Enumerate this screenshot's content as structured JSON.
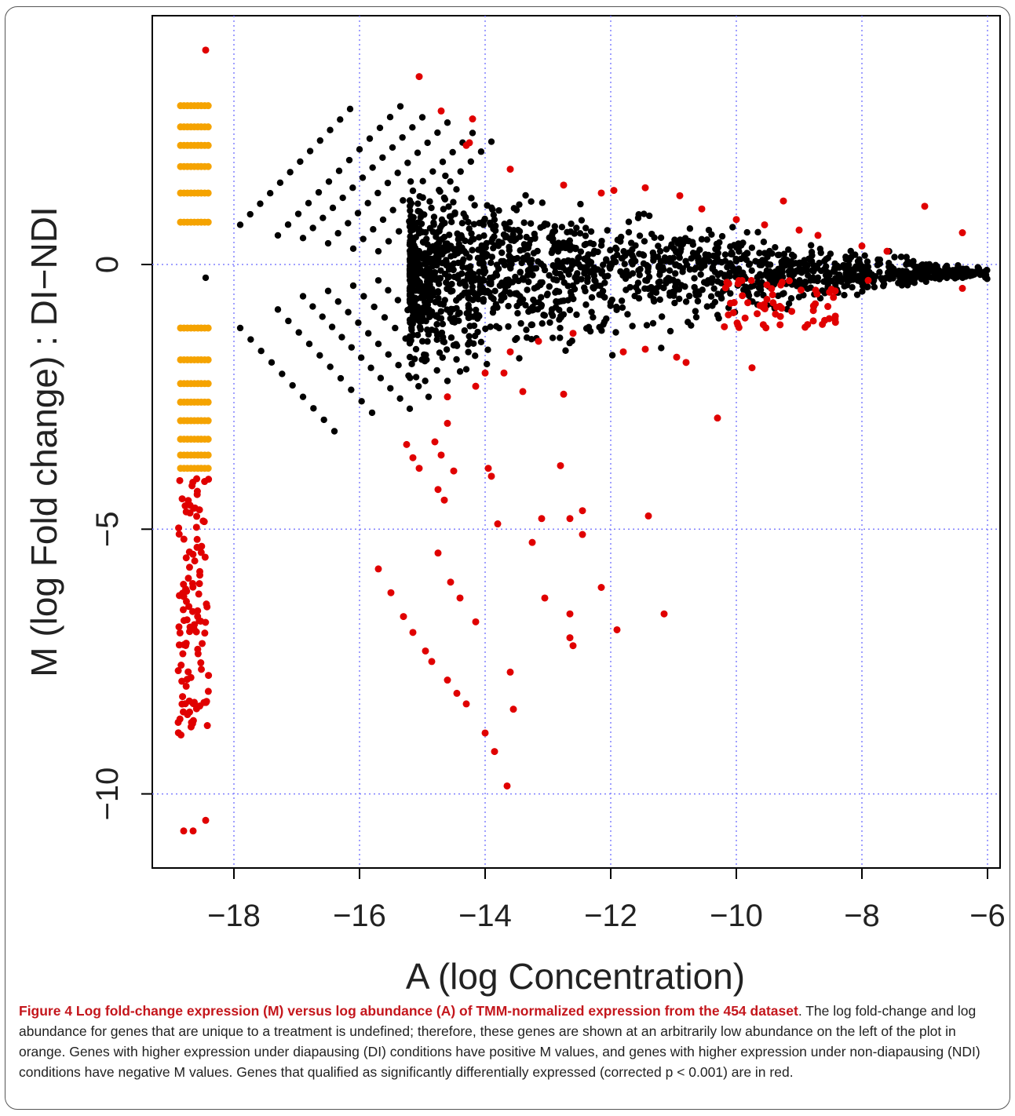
{
  "chart_data": {
    "type": "scatter",
    "xlabel": "A (log Concentration)",
    "ylabel": "M (log Fold change) : DI−NDI",
    "xlim": [
      -19.3,
      -5.8
    ],
    "ylim": [
      -11.4,
      4.7
    ],
    "xticks": [
      -18,
      -16,
      -14,
      -12,
      -10,
      -8,
      -6
    ],
    "yticks": [
      0,
      -5,
      -10
    ],
    "xtick_labels": [
      "−18",
      "−16",
      "−14",
      "−12",
      "−10",
      "−8",
      "−6"
    ],
    "ytick_labels": [
      "0",
      "−5",
      "−10"
    ],
    "grid": true,
    "colors": {
      "background_points": "#000000",
      "unique_genes": "#f5a300",
      "significant": "#e00000",
      "grid": "#8080ff"
    },
    "groups": {
      "black_lines": [
        {
          "x0": -17.9,
          "y0": 0.75,
          "slope": 1.25,
          "x1": -16.15
        },
        {
          "x0": -17.9,
          "y0": -1.2,
          "slope": -1.3,
          "x1": -16.4
        },
        {
          "x0": -17.3,
          "y0": 0.55,
          "slope": 1.25,
          "x1": -15.35
        },
        {
          "x0": -17.3,
          "y0": -0.85,
          "slope": -1.3,
          "x1": -15.8
        },
        {
          "x0": -16.9,
          "y0": 0.5,
          "slope": 1.2,
          "x1": -15.0
        },
        {
          "x0": -16.9,
          "y0": -0.6,
          "slope": -1.25,
          "x1": -15.2
        },
        {
          "x0": -16.5,
          "y0": 0.4,
          "slope": 1.2,
          "x1": -14.6
        },
        {
          "x0": -16.5,
          "y0": -0.5,
          "slope": -1.25,
          "x1": -14.9
        },
        {
          "x0": -16.1,
          "y0": 0.3,
          "slope": 1.15,
          "x1": -14.2
        },
        {
          "x0": -16.1,
          "y0": -0.4,
          "slope": -1.2,
          "x1": -14.6
        },
        {
          "x0": -15.7,
          "y0": 0.25,
          "slope": 1.15,
          "x1": -13.9
        },
        {
          "x0": -15.7,
          "y0": -0.3,
          "slope": -1.2,
          "x1": -14.3
        }
      ],
      "black_cloud": {
        "x_range": [
          -15.2,
          -6.0
        ],
        "center_m": -0.15
      },
      "orange_left": [
        {
          "x": -18.7,
          "m": 3.0
        },
        {
          "x": -18.7,
          "m": 2.6
        },
        {
          "x": -18.7,
          "m": 2.25
        },
        {
          "x": -18.7,
          "m": 1.85
        },
        {
          "x": -18.7,
          "m": 1.35
        },
        {
          "x": -18.7,
          "m": 0.8
        },
        {
          "x": -18.7,
          "m": -1.2
        },
        {
          "x": -18.7,
          "m": -1.8
        },
        {
          "x": -18.7,
          "m": -2.25
        },
        {
          "x": -18.7,
          "m": -2.6
        },
        {
          "x": -18.7,
          "m": -2.95
        },
        {
          "x": -18.7,
          "m": -3.3
        },
        {
          "x": -18.7,
          "m": -3.6
        },
        {
          "x": -18.7,
          "m": -3.85
        }
      ],
      "red_points": [
        {
          "x": -18.45,
          "m": 4.05
        },
        {
          "x": -15.05,
          "m": 3.55
        },
        {
          "x": -14.7,
          "m": 2.9
        },
        {
          "x": -14.2,
          "m": 2.75
        },
        {
          "x": -14.25,
          "m": 2.3
        },
        {
          "x": -14.3,
          "m": 2.25
        },
        {
          "x": -13.6,
          "m": 1.8
        },
        {
          "x": -12.75,
          "m": 1.5
        },
        {
          "x": -12.15,
          "m": 1.35
        },
        {
          "x": -11.95,
          "m": 1.4
        },
        {
          "x": -11.45,
          "m": 1.45
        },
        {
          "x": -10.9,
          "m": 1.3
        },
        {
          "x": -10.55,
          "m": 1.05
        },
        {
          "x": -10.0,
          "m": 0.85
        },
        {
          "x": -9.25,
          "m": 1.2
        },
        {
          "x": -9.55,
          "m": 0.75
        },
        {
          "x": -9.0,
          "m": 0.65
        },
        {
          "x": -8.7,
          "m": 0.55
        },
        {
          "x": -8.0,
          "m": 0.35
        },
        {
          "x": -7.0,
          "m": 1.1
        },
        {
          "x": -6.4,
          "m": 0.6
        },
        {
          "x": -7.6,
          "m": 0.25
        },
        {
          "x": -6.4,
          "m": -0.45
        },
        {
          "x": -7.9,
          "m": -0.3
        },
        {
          "x": -12.6,
          "m": -1.3
        },
        {
          "x": -13.15,
          "m": -1.45
        },
        {
          "x": -13.6,
          "m": -1.65
        },
        {
          "x": -14.0,
          "m": -2.05
        },
        {
          "x": -14.15,
          "m": -2.3
        },
        {
          "x": -13.7,
          "m": -2.05
        },
        {
          "x": -13.4,
          "m": -2.4
        },
        {
          "x": -12.75,
          "m": -2.45
        },
        {
          "x": -11.8,
          "m": -1.65
        },
        {
          "x": -11.45,
          "m": -1.6
        },
        {
          "x": -10.95,
          "m": -1.75
        },
        {
          "x": -10.8,
          "m": -1.85
        },
        {
          "x": -9.75,
          "m": -1.95
        },
        {
          "x": -10.3,
          "m": -2.9
        },
        {
          "x": -14.6,
          "m": -2.5
        },
        {
          "x": -14.6,
          "m": -3.0
        },
        {
          "x": -14.8,
          "m": -3.35
        },
        {
          "x": -15.25,
          "m": -3.4
        },
        {
          "x": -15.15,
          "m": -3.65
        },
        {
          "x": -15.05,
          "m": -3.85
        },
        {
          "x": -14.7,
          "m": -3.6
        },
        {
          "x": -14.5,
          "m": -3.9
        },
        {
          "x": -14.75,
          "m": -4.25
        },
        {
          "x": -14.65,
          "m": -4.45
        },
        {
          "x": -13.95,
          "m": -3.85
        },
        {
          "x": -13.9,
          "m": -4.0
        },
        {
          "x": -13.8,
          "m": -4.9
        },
        {
          "x": -12.8,
          "m": -3.8
        },
        {
          "x": -13.1,
          "m": -4.8
        },
        {
          "x": -13.25,
          "m": -5.25
        },
        {
          "x": -12.65,
          "m": -4.8
        },
        {
          "x": -12.45,
          "m": -4.65
        },
        {
          "x": -12.45,
          "m": -5.1
        },
        {
          "x": -11.4,
          "m": -4.75
        },
        {
          "x": -14.75,
          "m": -5.45
        },
        {
          "x": -14.55,
          "m": -6.0
        },
        {
          "x": -14.4,
          "m": -6.3
        },
        {
          "x": -14.15,
          "m": -6.75
        },
        {
          "x": -13.05,
          "m": -6.3
        },
        {
          "x": -12.65,
          "m": -6.6
        },
        {
          "x": -12.65,
          "m": -7.05
        },
        {
          "x": -12.6,
          "m": -7.2
        },
        {
          "x": -12.15,
          "m": -6.1
        },
        {
          "x": -11.9,
          "m": -6.9
        },
        {
          "x": -11.15,
          "m": -6.6
        },
        {
          "x": -13.6,
          "m": -7.7
        },
        {
          "x": -13.55,
          "m": -8.4
        },
        {
          "x": -13.65,
          "m": -9.85
        },
        {
          "x": -13.85,
          "m": -9.2
        },
        {
          "x": -15.7,
          "m": -5.75
        },
        {
          "x": -15.5,
          "m": -6.2
        },
        {
          "x": -15.3,
          "m": -6.65
        },
        {
          "x": -15.15,
          "m": -6.95
        },
        {
          "x": -14.95,
          "m": -7.3
        },
        {
          "x": -14.85,
          "m": -7.5
        },
        {
          "x": -14.6,
          "m": -7.85
        },
        {
          "x": -14.45,
          "m": -8.1
        },
        {
          "x": -14.3,
          "m": -8.3
        },
        {
          "x": -14.0,
          "m": -8.85
        },
        {
          "x": -18.8,
          "m": -10.7
        },
        {
          "x": -18.65,
          "m": -10.7
        },
        {
          "x": -18.45,
          "m": -10.5
        }
      ]
    }
  },
  "caption": {
    "lead": "Figure 4 Log fold-change expression (M) versus log abundance (A) of TMM-normalized expression from the 454 dataset",
    "body": ". The log fold-change and log abundance for genes that are unique to a treatment is undefined; therefore, these genes are shown at an arbitrarily low abundance on the left of the plot in orange. Genes with higher expression under diapausing (DI) conditions have positive M values, and genes with higher expression under non-diapausing (NDI) conditions have negative M values. Genes that qualified as significantly differentially expressed (corrected p < 0.001) are in red."
  }
}
